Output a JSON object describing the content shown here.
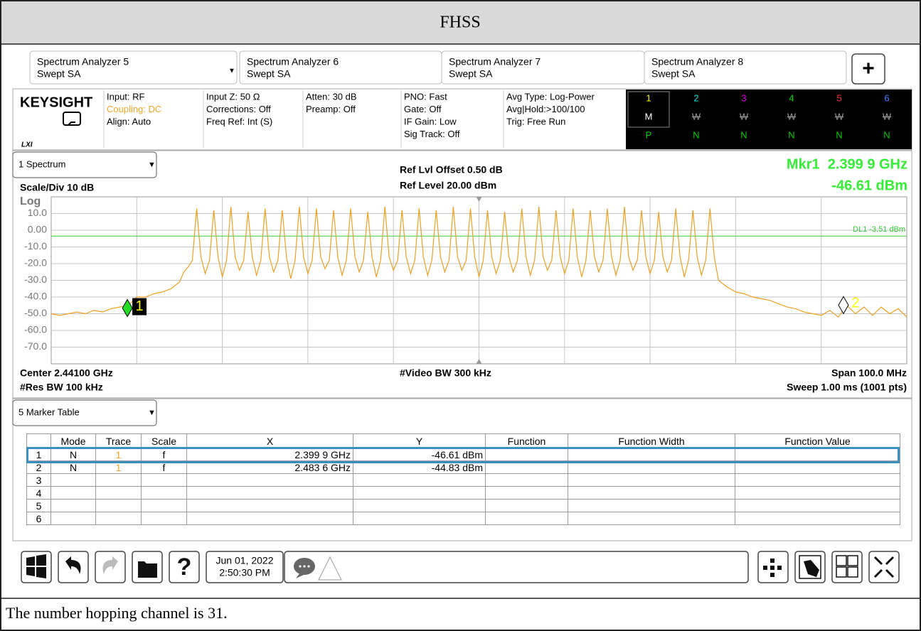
{
  "title": "FHSS",
  "tabs": [
    {
      "name": "Spectrum Analyzer 5",
      "mode": "Swept SA"
    },
    {
      "name": "Spectrum Analyzer 6",
      "mode": "Swept SA"
    },
    {
      "name": "Spectrum Analyzer 7",
      "mode": "Swept SA"
    },
    {
      "name": "Spectrum Analyzer 8",
      "mode": "Swept SA"
    }
  ],
  "add_tab": "+",
  "brand": "KEYSIGHT",
  "lxi": "LXI",
  "info": [
    [
      {
        "text": "Input: RF"
      },
      {
        "text": "Coupling: DC",
        "color": "#f5a623"
      },
      {
        "text": "Align: Auto"
      }
    ],
    [
      {
        "text": "Input Z: 50 Ω"
      },
      {
        "text": "Corrections: Off"
      },
      {
        "text": "Freq Ref: Int (S)"
      }
    ],
    [
      {
        "text": "Atten: 30 dB"
      },
      {
        "text": "Preamp: Off"
      }
    ],
    [
      {
        "text": "PNO: Fast"
      },
      {
        "text": "Gate: Off"
      },
      {
        "text": "IF Gain: Low"
      },
      {
        "text": "Sig Track: Off"
      }
    ],
    [
      {
        "text": "Avg Type: Log-Power"
      },
      {
        "text": "Avg|Hold:>100/100"
      },
      {
        "text": "Trig: Free Run"
      }
    ]
  ],
  "traces": [
    {
      "number": "1",
      "color": "#ffff00",
      "type": "M",
      "detector": "P"
    },
    {
      "number": "2",
      "color": "#00e0e0",
      "type": "W",
      "detector": "N"
    },
    {
      "number": "3",
      "color": "#e000e0",
      "type": "W",
      "detector": "N"
    },
    {
      "number": "4",
      "color": "#00e000",
      "type": "W",
      "detector": "N"
    },
    {
      "number": "5",
      "color": "#ff3030",
      "type": "W",
      "detector": "N"
    },
    {
      "number": "6",
      "color": "#4a80ff",
      "type": "W",
      "detector": "N"
    }
  ],
  "window": {
    "name": "1 Spectrum",
    "scale": "Scale/Div 10 dB",
    "log": "Log",
    "ref_offset": "Ref Lvl Offset 0.50 dB",
    "ref_level": "Ref Level 20.00 dBm",
    "marker_readout": [
      "Mkr1  2.399 9 GHz",
      "-46.61 dBm"
    ],
    "center": "Center 2.44100 GHz",
    "res_bw": "#Res BW 100 kHz",
    "video_bw": "#Video BW 300 kHz",
    "span": "Span 100.0 MHz",
    "sweep": "Sweep 1.00 ms (1001 pts)"
  },
  "chart_data": {
    "type": "line",
    "color": "#f0a020",
    "xlim": [
      2.391,
      2.491
    ],
    "ylim": [
      -80,
      20
    ],
    "yticks": [
      {
        "value": 10,
        "label": "10.0"
      },
      {
        "value": 0,
        "label": "0.00"
      },
      {
        "value": -10,
        "label": "-10.0"
      },
      {
        "value": -20,
        "label": "-20.0"
      },
      {
        "value": -30,
        "label": "-30.0"
      },
      {
        "value": -40,
        "label": "-40.0"
      },
      {
        "value": -50,
        "label": "-50.0"
      },
      {
        "value": -60,
        "label": "-60.0"
      },
      {
        "value": -70,
        "label": "-70.0"
      }
    ],
    "grid": true,
    "display_line": {
      "value": -3.51,
      "label": "DL1 -3.51 dBm",
      "color": "#33cc33"
    },
    "markers": [
      {
        "label": "1",
        "x": 2.3999,
        "y": -46.61,
        "fill": "#22dd22",
        "active": true
      },
      {
        "label": "2",
        "x": 2.4836,
        "y": -44.83,
        "fill": "#ffffff",
        "active": false
      }
    ],
    "x": [
      2.391,
      2.392,
      2.393,
      2.394,
      2.395,
      2.396,
      2.397,
      2.398,
      2.399,
      2.4,
      2.401,
      2.402,
      2.403,
      2.404,
      2.405,
      2.406,
      2.4065,
      2.407,
      2.4075,
      2.408,
      2.4085,
      2.409,
      2.4095,
      2.41,
      2.4105,
      2.411,
      2.4115,
      2.412,
      2.4125,
      2.413,
      2.4135,
      2.414,
      2.4145,
      2.415,
      2.4155,
      2.416,
      2.4165,
      2.417,
      2.4175,
      2.418,
      2.4185,
      2.419,
      2.4195,
      2.42,
      2.4205,
      2.421,
      2.4215,
      2.422,
      2.4225,
      2.423,
      2.4235,
      2.424,
      2.4245,
      2.425,
      2.4255,
      2.426,
      2.4265,
      2.427,
      2.4275,
      2.428,
      2.4285,
      2.429,
      2.4295,
      2.43,
      2.4305,
      2.431,
      2.4315,
      2.432,
      2.4325,
      2.433,
      2.4335,
      2.434,
      2.4345,
      2.435,
      2.4355,
      2.436,
      2.4365,
      2.437,
      2.4375,
      2.438,
      2.4385,
      2.439,
      2.4395,
      2.44,
      2.4405,
      2.441,
      2.4415,
      2.442,
      2.4425,
      2.443,
      2.4435,
      2.444,
      2.4445,
      2.445,
      2.4455,
      2.446,
      2.4465,
      2.447,
      2.4475,
      2.448,
      2.4485,
      2.449,
      2.4495,
      2.45,
      2.4505,
      2.451,
      2.4515,
      2.452,
      2.4525,
      2.453,
      2.4535,
      2.454,
      2.4545,
      2.455,
      2.4555,
      2.456,
      2.4565,
      2.457,
      2.4575,
      2.458,
      2.4585,
      2.459,
      2.4595,
      2.46,
      2.4605,
      2.461,
      2.4615,
      2.462,
      2.4625,
      2.463,
      2.4635,
      2.464,
      2.4645,
      2.465,
      2.4655,
      2.466,
      2.4665,
      2.467,
      2.4675,
      2.468,
      2.4685,
      2.469,
      2.47,
      2.471,
      2.472,
      2.473,
      2.474,
      2.475,
      2.476,
      2.477,
      2.478,
      2.479,
      2.48,
      2.481,
      2.482,
      2.483,
      2.484,
      2.485,
      2.486,
      2.487,
      2.488,
      2.489,
      2.49,
      2.491
    ],
    "values": [
      -50,
      -51,
      -50,
      -49,
      -50,
      -48,
      -49,
      -47,
      -46,
      -45,
      -40,
      -40,
      -38,
      -37,
      -35,
      -31,
      -25,
      -22,
      -18,
      13,
      -16,
      -26,
      -18,
      12,
      -16,
      -28,
      -18,
      14,
      -16,
      -24,
      -18,
      11,
      -16,
      -27,
      -18,
      13,
      -16,
      -25,
      -18,
      12,
      -16,
      -29,
      -18,
      14,
      -16,
      -26,
      -18,
      13,
      -16,
      -23,
      -18,
      12,
      -16,
      -27,
      -18,
      13,
      -16,
      -25,
      -18,
      11,
      -16,
      -28,
      -18,
      14,
      -16,
      -24,
      -18,
      12,
      -16,
      -26,
      -18,
      13,
      -16,
      -27,
      -18,
      12,
      -16,
      -25,
      -18,
      14,
      -16,
      -24,
      -18,
      13,
      -16,
      -28,
      -18,
      12,
      -16,
      -26,
      -18,
      11,
      -16,
      -25,
      -18,
      13,
      -16,
      -27,
      -18,
      14,
      -16,
      -24,
      -18,
      12,
      -16,
      -26,
      -18,
      13,
      -16,
      -28,
      -18,
      12,
      -16,
      -25,
      -18,
      13,
      -16,
      -27,
      -18,
      14,
      -16,
      -24,
      -18,
      12,
      -16,
      -26,
      -18,
      11,
      -16,
      -25,
      -18,
      13,
      -16,
      -28,
      -18,
      12,
      -16,
      -27,
      -18,
      13,
      -16,
      -30,
      -34,
      -37,
      -38,
      -40,
      -41,
      -42,
      -44,
      -46,
      -47,
      -49,
      -50,
      -51,
      -48,
      -52,
      -45,
      -50,
      -46,
      -51,
      -46,
      -50,
      -47,
      -52
    ]
  },
  "marker_table": {
    "name": "5 Marker Table",
    "columns": [
      "Mode",
      "Trace",
      "Scale",
      "X",
      "Y",
      "Function",
      "Function Width",
      "Function Value"
    ],
    "rows": [
      {
        "n": "1",
        "mode": "N",
        "trace": "1",
        "scale": "f",
        "x": "2.399 9 GHz",
        "y": "-46.61 dBm"
      },
      {
        "n": "2",
        "mode": "N",
        "trace": "1",
        "scale": "f",
        "x": "2.483 6 GHz",
        "y": "-44.83 dBm"
      },
      {
        "n": "3"
      },
      {
        "n": "4"
      },
      {
        "n": "5"
      },
      {
        "n": "6"
      }
    ]
  },
  "clock": {
    "date": "Jun 01, 2022",
    "time": "2:50:30 PM"
  },
  "caption": "The number hopping channel is 31."
}
